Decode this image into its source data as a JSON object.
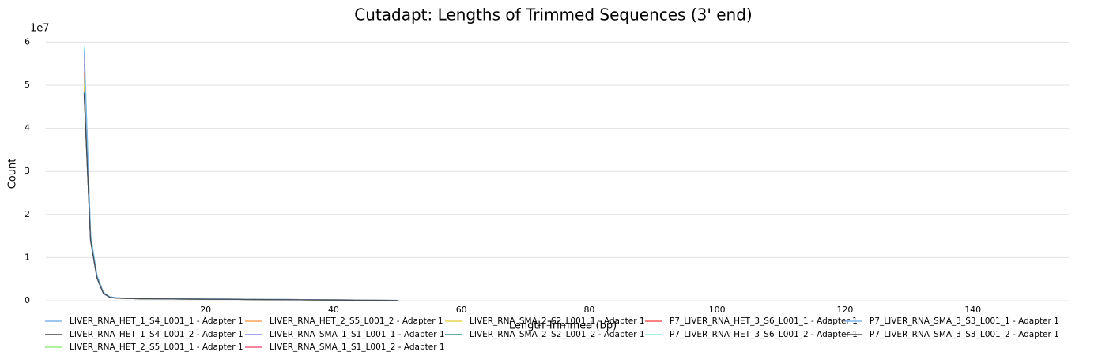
{
  "chart_data": {
    "type": "line",
    "title": "Cutadapt: Lengths of Trimmed Sequences (3' end)",
    "x_label": "Length Trimmed (bp)",
    "y_label": "Count",
    "y_offset_label": "1e7",
    "x": [
      1,
      2,
      3,
      4,
      5,
      6,
      7,
      8,
      10,
      15,
      20,
      30,
      40,
      50
    ],
    "xlim": [
      -5,
      155
    ],
    "xticks": [
      20,
      40,
      60,
      80,
      100,
      120,
      140
    ],
    "ylim": [
      0,
      6.3
    ],
    "yticks": [
      0,
      1,
      2,
      3,
      4,
      5,
      6
    ],
    "grid": true,
    "series": [
      {
        "name": "LIVER_RNA_HET_1_S4_L001_1 - Adapter 1",
        "color": "#7cb5ec",
        "values": [
          5.85,
          1.5,
          0.58,
          0.19,
          0.09,
          0.07,
          0.06,
          0.055,
          0.05,
          0.045,
          0.04,
          0.03,
          0.02,
          0.006
        ]
      },
      {
        "name": "LIVER_RNA_HET_1_S4_L001_2 - Adapter 1",
        "color": "#434348",
        "values": [
          4.8,
          1.4,
          0.53,
          0.17,
          0.08,
          0.06,
          0.055,
          0.05,
          0.045,
          0.04,
          0.035,
          0.025,
          0.015,
          0.005
        ]
      },
      {
        "name": "LIVER_RNA_HET_2_S5_L001_1 - Adapter 1",
        "color": "#90ed7d",
        "values": [
          5.2,
          1.45,
          0.55,
          0.18,
          0.08,
          0.06,
          0.055,
          0.05,
          0.045,
          0.04,
          0.035,
          0.025,
          0.015,
          0.005
        ]
      },
      {
        "name": "LIVER_RNA_HET_2_S5_L001_2 - Adapter 1",
        "color": "#f7a35c",
        "values": [
          5.3,
          1.45,
          0.56,
          0.18,
          0.08,
          0.06,
          0.055,
          0.05,
          0.045,
          0.04,
          0.035,
          0.025,
          0.015,
          0.005
        ]
      },
      {
        "name": "LIVER_RNA_SMA_1_S1_L001_1 - Adapter 1",
        "color": "#8085e9",
        "values": [
          5.5,
          1.5,
          0.57,
          0.19,
          0.09,
          0.065,
          0.06,
          0.055,
          0.05,
          0.045,
          0.04,
          0.03,
          0.02,
          0.006
        ]
      },
      {
        "name": "LIVER_RNA_SMA_1_S1_L001_2 - Adapter 1",
        "color": "#f15c80",
        "values": [
          4.9,
          1.4,
          0.54,
          0.17,
          0.08,
          0.06,
          0.055,
          0.05,
          0.045,
          0.04,
          0.035,
          0.025,
          0.015,
          0.005
        ]
      },
      {
        "name": "LIVER_RNA_SMA_2_S2_L001_1 - Adapter 1",
        "color": "#e4d354",
        "values": [
          5.0,
          1.45,
          0.55,
          0.18,
          0.08,
          0.06,
          0.055,
          0.05,
          0.045,
          0.04,
          0.035,
          0.025,
          0.015,
          0.005
        ]
      },
      {
        "name": "LIVER_RNA_SMA_2_S2_L001_2 - Adapter 1",
        "color": "#2b908f",
        "values": [
          4.85,
          1.4,
          0.53,
          0.17,
          0.08,
          0.06,
          0.055,
          0.05,
          0.045,
          0.04,
          0.035,
          0.025,
          0.015,
          0.005
        ]
      },
      {
        "name": "P7_LIVER_RNA_HET_3_S6_L001_1 - Adapter 1",
        "color": "#f45b5b",
        "values": [
          5.7,
          1.5,
          0.57,
          0.19,
          0.09,
          0.065,
          0.06,
          0.055,
          0.05,
          0.045,
          0.04,
          0.03,
          0.02,
          0.006
        ]
      },
      {
        "name": "P7_LIVER_RNA_HET_3_S6_L001_2 - Adapter 1",
        "color": "#91e8e1",
        "values": [
          5.9,
          1.55,
          0.6,
          0.2,
          0.09,
          0.07,
          0.06,
          0.055,
          0.05,
          0.045,
          0.04,
          0.03,
          0.02,
          0.006
        ]
      },
      {
        "name": "P7_LIVER_RNA_SMA_3_S3_L001_1 - Adapter 1",
        "color": "#7cb5ec",
        "values": [
          5.8,
          1.5,
          0.58,
          0.19,
          0.09,
          0.07,
          0.06,
          0.055,
          0.05,
          0.045,
          0.04,
          0.03,
          0.02,
          0.006
        ]
      },
      {
        "name": "P7_LIVER_RNA_SMA_3_S3_L001_2 - Adapter 1",
        "color": "#434348",
        "values": [
          4.8,
          1.4,
          0.53,
          0.17,
          0.08,
          0.06,
          0.055,
          0.05,
          0.045,
          0.04,
          0.035,
          0.025,
          0.015,
          0.005
        ]
      }
    ]
  }
}
